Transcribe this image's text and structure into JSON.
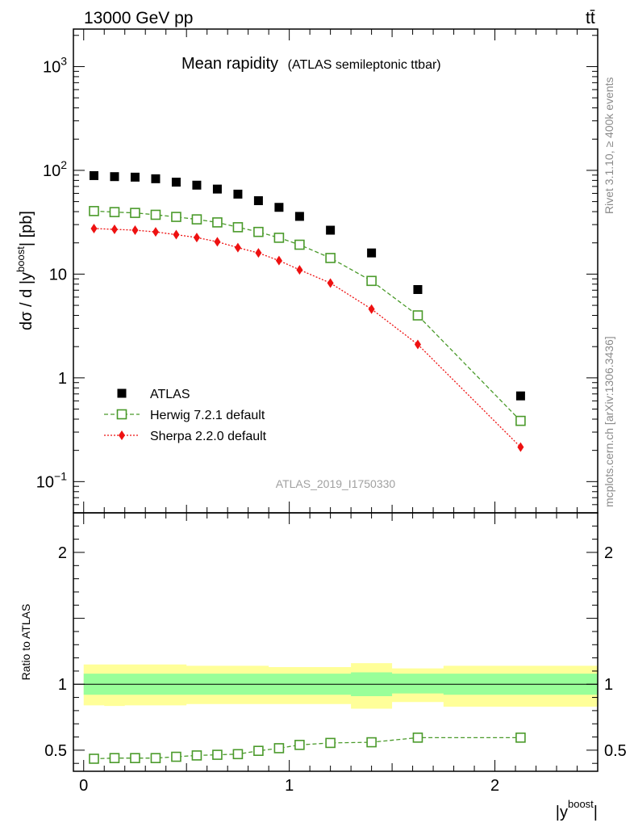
{
  "header": {
    "energy_label": "13000 GeV pp",
    "process_label": "tt̄"
  },
  "side_labels": {
    "rivet": "Rivet 3.1.10, ≥ 400k events",
    "mcplots": "mcplots.cern.ch [arXiv:1306.3436]"
  },
  "chart_data": [
    {
      "type": "scatter",
      "title": "Mean rapidity",
      "subtitle": "(ATLAS semileptonic ttbar)",
      "analysis_id": "ATLAS_2019_I1750330",
      "xlabel": "|y",
      "xlabel_sup": "boost",
      "xlabel_end": "|",
      "ylabel": "dσ / d |y",
      "ylabel_sup": "boost",
      "ylabel_end": "| [pb]",
      "yscale": "log",
      "xlim": [
        -0.05,
        2.5
      ],
      "ylim": [
        0.05,
        2300
      ],
      "y_ticks": [
        {
          "value": 1000,
          "label": "10",
          "exp": "3"
        },
        {
          "value": 100,
          "label": "10",
          "exp": "2"
        },
        {
          "value": 10,
          "label": "10",
          "exp": ""
        },
        {
          "value": 1,
          "label": "1",
          "exp": ""
        },
        {
          "value": 0.1,
          "label": "10",
          "exp": "−1"
        }
      ],
      "legend_position": "bottom-left",
      "x": [
        0.05,
        0.15,
        0.25,
        0.35,
        0.45,
        0.55,
        0.65,
        0.75,
        0.85,
        0.95,
        1.05,
        1.2,
        1.4,
        1.625,
        2.125
      ],
      "series": [
        {
          "name": "ATLAS",
          "color": "#000000",
          "marker": "filled-square",
          "line": "none",
          "values": [
            89,
            87,
            86,
            83,
            77,
            72,
            66,
            59,
            51,
            44,
            36,
            26.5,
            16,
            7.1,
            0.67
          ]
        },
        {
          "name": "Herwig 7.2.1 default",
          "color": "#4a9a2a",
          "marker": "open-square",
          "line": "dashed",
          "values": [
            40.5,
            39.6,
            38.9,
            37.3,
            35.6,
            33.7,
            31.5,
            28.3,
            25.5,
            22.4,
            19.2,
            14.3,
            8.6,
            4.0,
            0.385
          ]
        },
        {
          "name": "Sherpa 2.2.0 default",
          "color": "#ee1111",
          "marker": "filled-diamond",
          "line": "dotted",
          "values": [
            27.5,
            27.0,
            26.5,
            25.5,
            24.0,
            22.5,
            20.5,
            18.0,
            16.0,
            13.5,
            11.0,
            8.2,
            4.6,
            2.1,
            0.215
          ]
        }
      ]
    },
    {
      "type": "line",
      "ylabel": "Ratio to ATLAS",
      "ylim": [
        0.34,
        2.3
      ],
      "y_ticks": [
        {
          "value": 2,
          "label": "2"
        },
        {
          "value": 1,
          "label": "1"
        },
        {
          "value": 0.5,
          "label": "0.5"
        }
      ],
      "x_ticks": [
        {
          "value": 0,
          "label": "0"
        },
        {
          "value": 1,
          "label": "1"
        },
        {
          "value": 2,
          "label": "2"
        }
      ],
      "bins": [
        [
          0.0,
          0.1
        ],
        [
          0.1,
          0.2
        ],
        [
          0.2,
          0.3
        ],
        [
          0.3,
          0.4
        ],
        [
          0.4,
          0.5
        ],
        [
          0.5,
          0.6
        ],
        [
          0.6,
          0.7
        ],
        [
          0.7,
          0.8
        ],
        [
          0.8,
          0.9
        ],
        [
          0.9,
          1.0
        ],
        [
          1.0,
          1.1
        ],
        [
          1.1,
          1.3
        ],
        [
          1.3,
          1.5
        ],
        [
          1.5,
          1.75
        ],
        [
          1.75,
          2.5
        ]
      ],
      "stat_band": {
        "color": "#99ff99",
        "lo": [
          0.92,
          0.92,
          0.92,
          0.92,
          0.92,
          0.92,
          0.92,
          0.92,
          0.92,
          0.92,
          0.92,
          0.92,
          0.91,
          0.93,
          0.92
        ],
        "hi": [
          1.08,
          1.08,
          1.08,
          1.08,
          1.08,
          1.08,
          1.08,
          1.08,
          1.08,
          1.08,
          1.08,
          1.08,
          1.09,
          1.08,
          1.08
        ]
      },
      "total_band": {
        "color": "#ffff99",
        "lo": [
          0.84,
          0.835,
          0.84,
          0.84,
          0.84,
          0.85,
          0.85,
          0.85,
          0.85,
          0.85,
          0.85,
          0.85,
          0.815,
          0.865,
          0.83
        ],
        "hi": [
          1.15,
          1.15,
          1.15,
          1.15,
          1.15,
          1.14,
          1.14,
          1.14,
          1.14,
          1.13,
          1.13,
          1.13,
          1.16,
          1.12,
          1.14
        ]
      },
      "reference_line": 1,
      "series": [
        {
          "name": "Herwig 7.2.1 default",
          "color": "#4a9a2a",
          "marker": "open-square",
          "line": "dashed",
          "x": [
            0.05,
            0.15,
            0.25,
            0.35,
            0.45,
            0.55,
            0.65,
            0.75,
            0.85,
            0.95,
            1.05,
            1.2,
            1.4,
            1.625,
            2.125
          ],
          "values": [
            0.435,
            0.44,
            0.44,
            0.44,
            0.45,
            0.46,
            0.465,
            0.47,
            0.495,
            0.515,
            0.54,
            0.555,
            0.56,
            0.595,
            0.595
          ]
        }
      ]
    }
  ]
}
